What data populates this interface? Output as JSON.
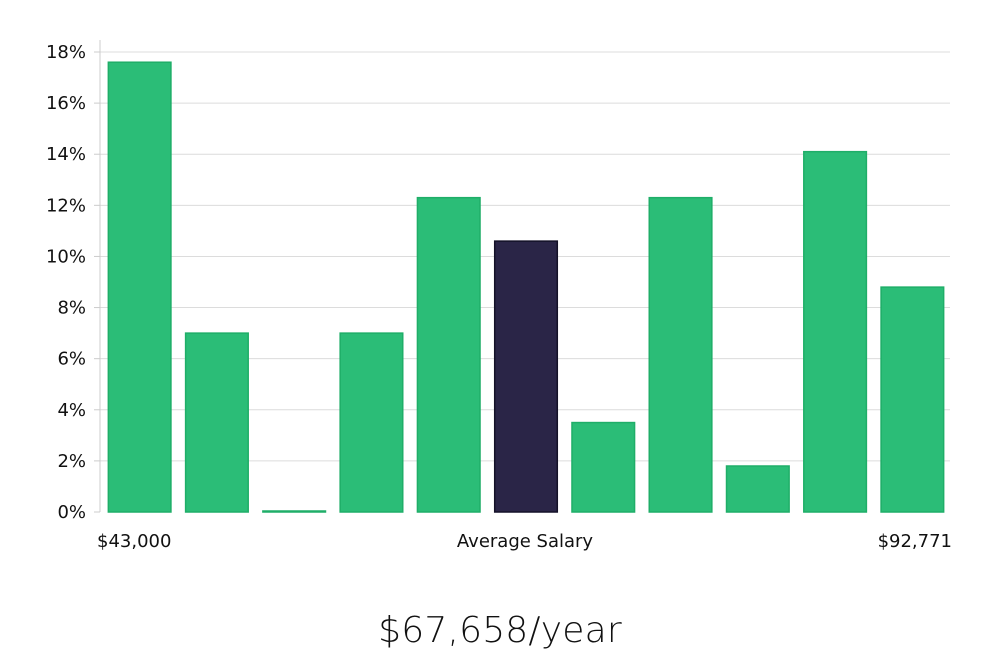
{
  "chart_data": {
    "type": "bar",
    "x_start_label": "$43,000",
    "x_center_label": "Average Salary",
    "x_end_label": "$92,771",
    "values": [
      17.6,
      7.0,
      0.0,
      7.0,
      12.3,
      10.6,
      3.5,
      12.3,
      1.8,
      14.1,
      8.8
    ],
    "highlight_index": 5,
    "y_ticks": [
      "0%",
      "2%",
      "4%",
      "6%",
      "8%",
      "10%",
      "12%",
      "14%",
      "16%",
      "18%"
    ],
    "ylim": [
      0,
      18
    ],
    "grid": true,
    "colors": {
      "bar": "#2bbd77",
      "bar_edge": "#1fae68",
      "highlight": "#2a2547",
      "highlight_edge": "#141128",
      "grid": "#dcdcdc",
      "axis": "#cccccc"
    }
  },
  "summary": {
    "average_salary": "$67,658/year"
  }
}
